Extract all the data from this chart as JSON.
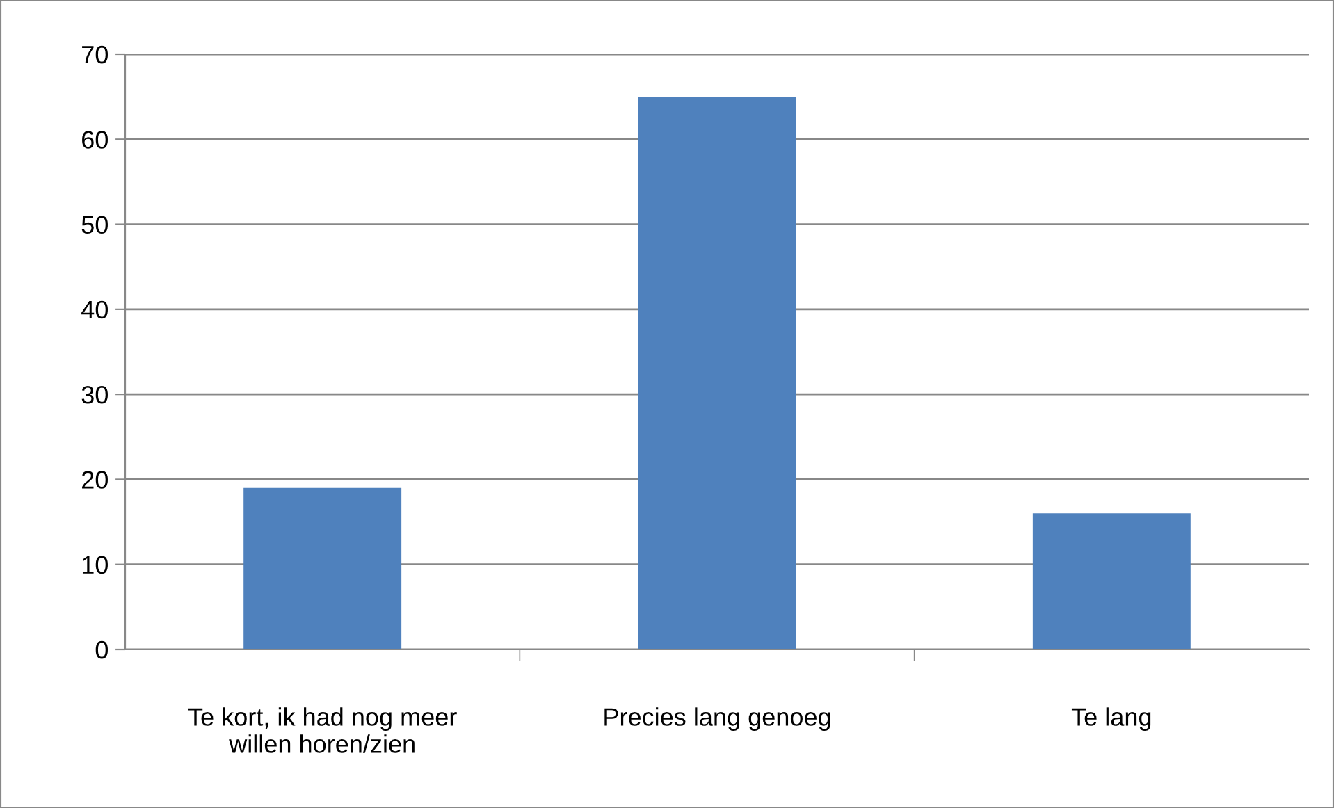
{
  "chart_data": {
    "type": "bar",
    "categories": [
      "Te kort, ik had nog meer\nwillen horen/zien",
      "Precies lang genoeg",
      "Te lang"
    ],
    "values": [
      19,
      65,
      16
    ],
    "color": "#4f81bd",
    "ylim": [
      0,
      70
    ],
    "yticks": [
      0,
      10,
      20,
      30,
      40,
      50,
      60,
      70
    ],
    "grid": "y",
    "legend": false
  }
}
